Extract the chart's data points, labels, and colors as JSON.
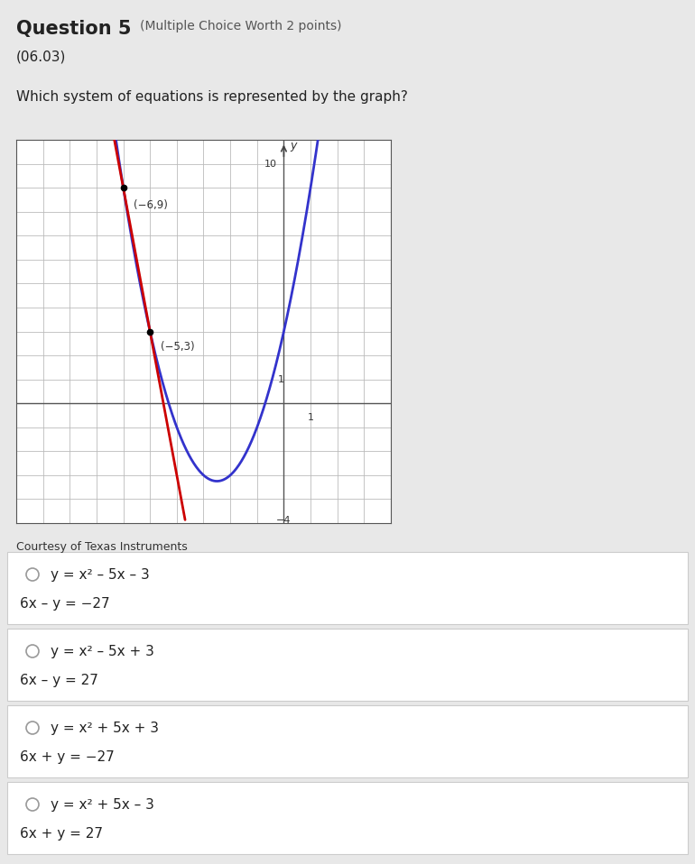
{
  "title_bold": "Question 5",
  "title_normal": "(Multiple Choice Worth 2 points)",
  "code": "(06.03)",
  "question": "Which system of equations is represented by the graph?",
  "graph_credit": "Courtesy of Texas Instruments",
  "parabola_color": "#3333cc",
  "line_color": "#cc0000",
  "point1": [
    -6,
    9
  ],
  "point2": [
    -5,
    3
  ],
  "graph_xlim": [
    -10,
    4
  ],
  "graph_ylim": [
    -5,
    11
  ],
  "grid_color": "#bbbbbb",
  "bg_color": "#e8e8e8",
  "answer_bg": "#ffffff",
  "answer_border": "#cccccc",
  "options": [
    [
      "y = x² – 5x – 3",
      "6x – y = −27"
    ],
    [
      "y = x² – 5x + 3",
      "6x – y = 27"
    ],
    [
      "y = x² + 5x + 3",
      "6x + y = −27"
    ],
    [
      "y = x² + 5x – 3",
      "6x + y = 27"
    ]
  ]
}
